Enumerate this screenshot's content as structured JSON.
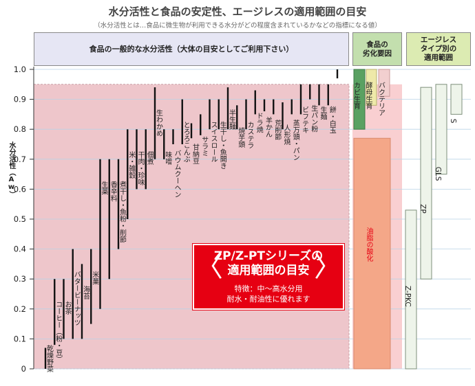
{
  "title": "水分活性と食品の安定性、エージレスの適用範囲の目安",
  "subtitle": "（水分活性とは…食品に微生物が利用できる水分がどの程度含まれているかなどの指標になる値）",
  "headers": {
    "general": "食品の一般的な水分活性（大体の目安としてご利用下さい）",
    "deterioration": "食品の\n劣化要因",
    "ageless": "エージレス\nタイプ別の\n適用範囲"
  },
  "promo": {
    "title": "ZP/Z-PTシリーズの\n適用範囲の目安",
    "description": "特徴：中～高水分用\n耐水・耐油性に優れます",
    "left_mark": "〈",
    "right_mark": "〉"
  },
  "colors": {
    "shaded_region": "#eec6cb",
    "mold": "#5aa162",
    "yeast": "#eee9a9",
    "bacteria": "#f2cfcf",
    "lipid_bg": "#f9cfd1",
    "lipid": "#f4a788",
    "ageless_box": "#eef4ea",
    "promo_red": "#e60012"
  },
  "chart_data": {
    "type": "range",
    "title": "水分活性と食品の安定性、エージレスの適用範囲の目安",
    "ylabel": "水分活性（Aw）",
    "ylim": [
      0,
      1.0
    ],
    "yticks": [
      "0",
      "0.1",
      "0.2",
      "0.3",
      "0.4",
      "0.5",
      "0.6",
      "0.7",
      "0.8",
      "0.9",
      "1.0"
    ],
    "grid": true,
    "highlighted_range": [
      0,
      0.95
    ],
    "foods": [
      {
        "label": "乾燥野菜",
        "range": [
          0.0,
          0.07
        ]
      },
      {
        "label": "コーヒー（粉・豆）",
        "range": [
          0.08,
          0.3
        ]
      },
      {
        "label": "お茶",
        "range": [
          0.1,
          0.3
        ]
      },
      {
        "label": "バタービーナッツ",
        "range": [
          0.1,
          0.4
        ]
      },
      {
        "label": "海苔",
        "range": [
          0.1,
          0.35
        ]
      },
      {
        "label": "米菓",
        "range": [
          0.15,
          0.4
        ]
      },
      {
        "label": "生薬",
        "range": [
          0.2,
          0.7
        ]
      },
      {
        "label": "香辛料",
        "range": [
          0.3,
          0.7
        ]
      },
      {
        "label": "煮干し・魚粉・削節",
        "range": [
          0.4,
          0.7
        ]
      },
      {
        "label": "米・雑穀",
        "range": [
          0.5,
          0.8
        ]
      },
      {
        "label": "干肉・珍味",
        "range": [
          0.6,
          0.8
        ]
      },
      {
        "label": "佃煮",
        "range": [
          0.6,
          0.8
        ]
      },
      {
        "label": "生わかめ",
        "range": [
          0.7,
          0.94
        ]
      },
      {
        "label": "味噌",
        "range": [
          0.7,
          0.8
        ]
      },
      {
        "label": "バウムクーヘン",
        "range": [
          0.75,
          0.8
        ]
      },
      {
        "label": "とろろこんぶ",
        "range": [
          0.75,
          0.9
        ]
      },
      {
        "label": "甘納豆",
        "range": [
          0.77,
          0.82
        ]
      },
      {
        "label": "サラミ",
        "range": [
          0.78,
          0.85
        ]
      },
      {
        "label": "スイスロール",
        "range": [
          0.8,
          0.9
        ]
      },
      {
        "label": "生干し・魚開き",
        "range": [
          0.8,
          0.9
        ]
      },
      {
        "label": "半生麺",
        "range": [
          0.8,
          0.94
        ]
      },
      {
        "label": "焼芋頭",
        "range": [
          0.8,
          0.88
        ]
      },
      {
        "label": "カステラ",
        "range": [
          0.8,
          0.9
        ]
      },
      {
        "label": "ドラ焼",
        "range": [
          0.85,
          0.93
        ]
      },
      {
        "label": "羊かん",
        "range": [
          0.86,
          0.9
        ]
      },
      {
        "label": "荒削節",
        "range": [
          0.85,
          0.9
        ]
      },
      {
        "label": "人形焼",
        "range": [
          0.8,
          0.89
        ]
      },
      {
        "label": "蒸万頭・パン",
        "range": [
          0.85,
          0.9
        ]
      },
      {
        "label": "ビフテキ",
        "range": [
          0.85,
          0.95
        ]
      },
      {
        "label": "生パン粉",
        "range": [
          0.9,
          0.95
        ]
      },
      {
        "label": "生麺",
        "range": [
          0.88,
          0.95
        ]
      },
      {
        "label": "餅・白玉",
        "range": [
          0.88,
          0.95
        ]
      },
      {
        "label": "",
        "range": [
          0.97,
          1.0
        ]
      }
    ],
    "deterioration_factors": [
      {
        "label": "カビ生育",
        "range": [
          0.8,
          1.0
        ]
      },
      {
        "label": "酵母生育",
        "range": [
          0.88,
          1.0
        ]
      },
      {
        "label": "バクテリア",
        "range": [
          0.91,
          1.0
        ]
      },
      {
        "label": "油脂の酸化",
        "range": [
          0.0,
          0.77
        ]
      }
    ],
    "ageless_types": [
      {
        "label": "Z-PKC",
        "range": [
          0.0,
          0.53
        ]
      },
      {
        "label": "ZP",
        "range": [
          0.3,
          0.94
        ]
      },
      {
        "label": "GLS",
        "range": [
          0.65,
          0.95
        ]
      },
      {
        "label": "S",
        "range": [
          0.85,
          0.95
        ]
      }
    ]
  }
}
